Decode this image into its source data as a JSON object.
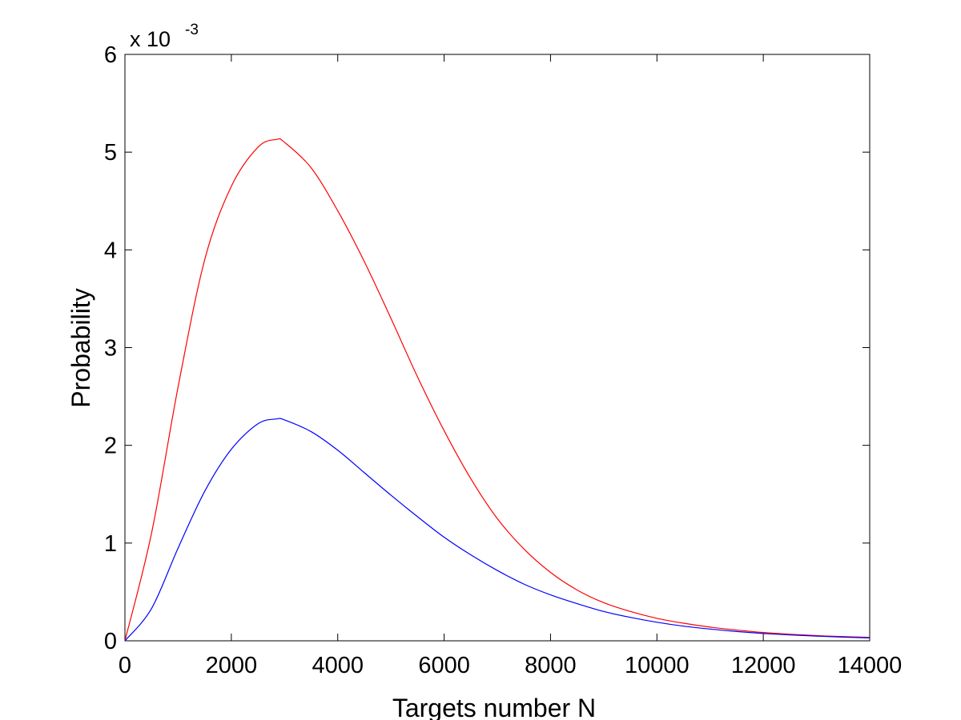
{
  "chart_data": {
    "type": "line",
    "xlabel": "Targets number N",
    "ylabel": "Probability",
    "exponent_base": "x 10",
    "exponent_power": "-3",
    "xlim": [
      0,
      14000
    ],
    "ylim": [
      0,
      0.006
    ],
    "x_ticks": [
      0,
      2000,
      4000,
      6000,
      8000,
      10000,
      12000,
      14000
    ],
    "x_tick_labels": [
      "0",
      "2000",
      "4000",
      "6000",
      "8000",
      "10000",
      "12000",
      "14000"
    ],
    "y_ticks": [
      0,
      0.001,
      0.002,
      0.003,
      0.004,
      0.005,
      0.006
    ],
    "y_tick_labels": [
      "0",
      "1",
      "2",
      "3",
      "4",
      "5",
      "6"
    ],
    "grid": false,
    "x": [
      0,
      500,
      1000,
      1500,
      2000,
      2500,
      2850,
      3000,
      3500,
      4000,
      4500,
      5000,
      5500,
      6000,
      6500,
      7000,
      7500,
      8000,
      8500,
      9000,
      9500,
      10000,
      10500,
      11000,
      11500,
      12000,
      12500,
      13000,
      13500,
      14000
    ],
    "series": [
      {
        "color": "#ff0000",
        "values": [
          0,
          0.0011,
          0.0026,
          0.0039,
          0.00465,
          0.00505,
          0.00513,
          0.0051,
          0.00484,
          0.0044,
          0.00388,
          0.0033,
          0.0027,
          0.00215,
          0.00166,
          0.00125,
          0.00094,
          0.0007,
          0.00052,
          0.00039,
          0.0003,
          0.00023,
          0.00018,
          0.00014,
          0.00011,
          8.5e-05,
          6.7e-05,
          5.3e-05,
          4.3e-05,
          3.5e-05
        ]
      },
      {
        "color": "#0000ff",
        "values": [
          0,
          0.00033,
          0.00095,
          0.00153,
          0.00196,
          0.00222,
          0.00227,
          0.00226,
          0.00214,
          0.00195,
          0.00172,
          0.00149,
          0.00127,
          0.00106,
          0.00088,
          0.00072,
          0.00058,
          0.00047,
          0.00038,
          0.0003,
          0.00024,
          0.00019,
          0.00015,
          0.00012,
          9.5e-05,
          7.5e-05,
          6e-05,
          4.8e-05,
          3.8e-05,
          3e-05
        ]
      }
    ]
  }
}
